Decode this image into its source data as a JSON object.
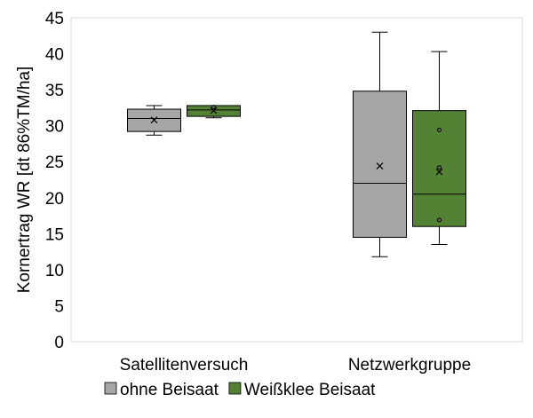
{
  "chart_data": {
    "type": "box",
    "title": "",
    "xlabel": "",
    "ylabel": "Kornertrag WR [dt 86%TM/ha]",
    "ylim": [
      0,
      45
    ],
    "yticks": [
      0,
      5,
      10,
      15,
      20,
      25,
      30,
      35,
      40,
      45
    ],
    "grid": false,
    "legend_position": "bottom",
    "categories": [
      "Satellitenversuch",
      "Netzwerkgruppe"
    ],
    "series": [
      {
        "name": "ohne Beisaat",
        "color": "#a6a6a6",
        "boxes": [
          {
            "min": 28.7,
            "q1": 29.2,
            "median": 31.0,
            "q3": 32.3,
            "max": 32.8,
            "mean": 30.8,
            "points": []
          },
          {
            "min": 11.8,
            "q1": 14.5,
            "median": 22.0,
            "q3": 34.8,
            "max": 43.0,
            "mean": 24.4,
            "points": []
          }
        ]
      },
      {
        "name": "Weißklee Beisaat",
        "color": "#548235",
        "boxes": [
          {
            "min": 31.1,
            "q1": 31.3,
            "median": 32.2,
            "q3": 32.8,
            "max": 32.8,
            "mean": 32.1,
            "points": [
              32.6
            ]
          },
          {
            "min": 13.5,
            "q1": 16.0,
            "median": 20.5,
            "q3": 32.1,
            "max": 40.3,
            "mean": 23.6,
            "points": [
              29.4,
              24.2,
              16.9
            ]
          }
        ]
      }
    ]
  }
}
